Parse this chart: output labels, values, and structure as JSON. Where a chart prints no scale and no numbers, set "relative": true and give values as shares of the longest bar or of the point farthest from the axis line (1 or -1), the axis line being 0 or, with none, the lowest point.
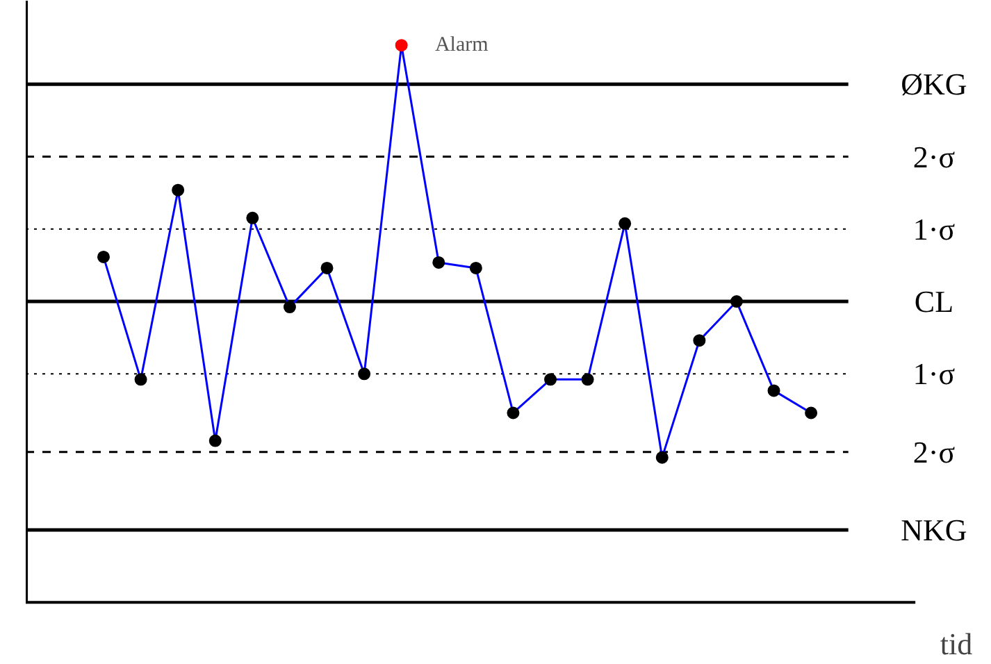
{
  "chart_data": {
    "type": "line",
    "relative": true,
    "xlabel": "tid",
    "categories": [
      null,
      null,
      null,
      null,
      null,
      null,
      null,
      null,
      null,
      null,
      null,
      null,
      null,
      null,
      null,
      null,
      null,
      null,
      null,
      null
    ],
    "series": [
      {
        "color": "#0000ff",
        "colors": [
          "#000000",
          "#000000",
          "#000000",
          "#000000",
          "#000000",
          "#000000",
          "#000000",
          "#000000",
          "#ff0000",
          "#000000",
          "#000000",
          "#000000",
          "#000000",
          "#000000",
          "#000000",
          "#000000",
          "#000000",
          "#000000",
          "#000000",
          "#000000"
        ],
        "values": [
          0.62,
          0.4,
          0.74,
          0.29,
          0.69,
          0.53,
          0.6,
          0.41,
          1.0,
          0.61,
          0.6,
          0.34,
          0.4,
          0.4,
          0.68,
          0.26,
          0.47,
          0.54,
          0.38,
          0.34
        ]
      }
    ],
    "marker": "circle",
    "line_style": "solid",
    "annotations": [
      "Alarm"
    ],
    "ref_lines": [
      {
        "axis": "y",
        "value": 0.93,
        "label": "ØKG",
        "color": "#000000",
        "line_style": "solid"
      },
      {
        "axis": "y",
        "value": 0.8,
        "label": "2·σ",
        "color": "#000000",
        "line_style": "dashed"
      },
      {
        "axis": "y",
        "value": 0.67,
        "label": "1·σ",
        "color": "#000000",
        "line_style": "dotted"
      },
      {
        "axis": "y",
        "value": 0.54,
        "label": "CL",
        "color": "#000000",
        "line_style": "solid"
      },
      {
        "axis": "y",
        "value": 0.41,
        "label": "1·σ",
        "color": "#000000",
        "line_style": "dotted"
      },
      {
        "axis": "y",
        "value": 0.27,
        "label": "2·σ",
        "color": "#000000",
        "line_style": "dashed"
      },
      {
        "axis": "y",
        "value": 0.13,
        "label": "NKG",
        "color": "#000000",
        "line_style": "solid"
      }
    ]
  }
}
